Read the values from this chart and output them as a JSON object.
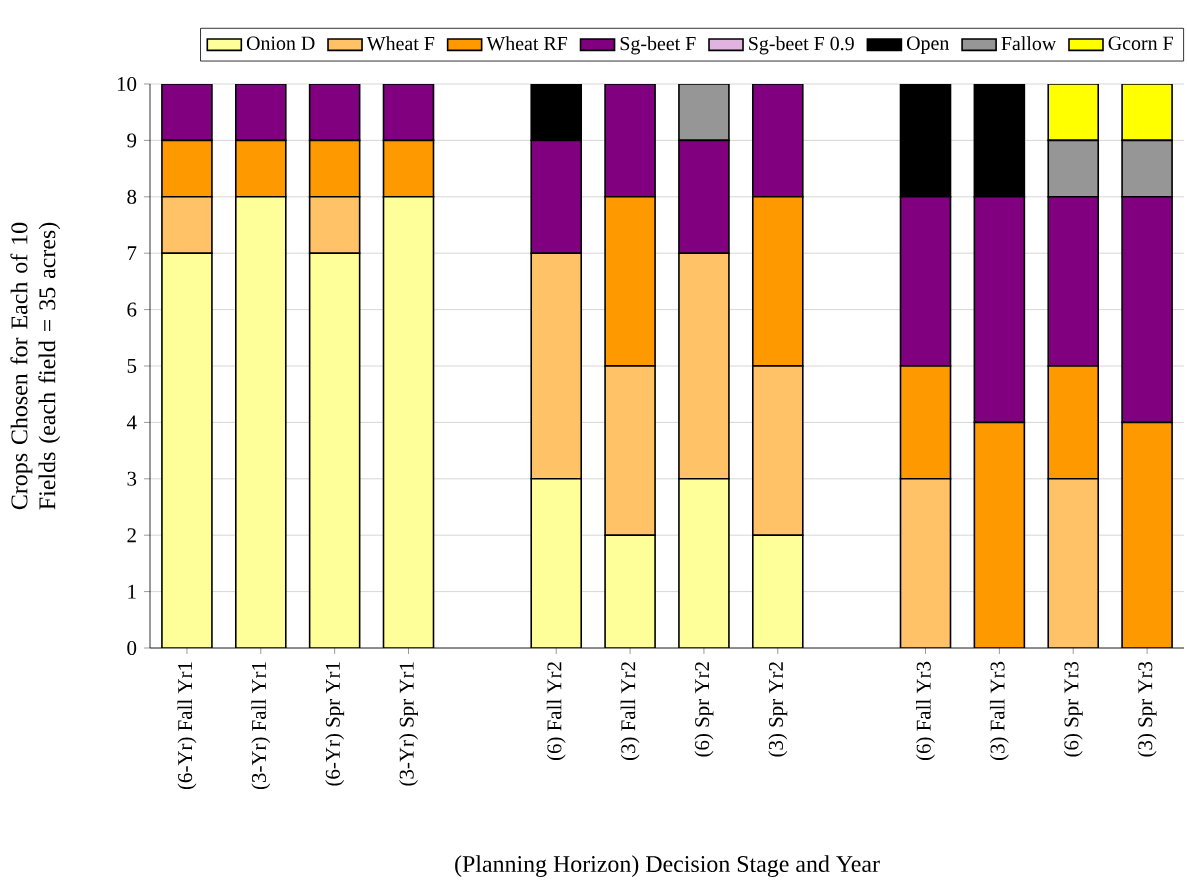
{
  "chart_data": {
    "type": "bar",
    "stacked": true,
    "categories": [
      "(6-Yr) Fall Yr1",
      "(3-Yr) Fall Yr1",
      "(6-Yr) Spr Yr1",
      "(3-Yr) Spr Yr1",
      null,
      "(6) Fall Yr2",
      "(3) Fall Yr2",
      "(6) Spr Yr2",
      "(3) Spr Yr2",
      null,
      "(6) Fall Yr3",
      "(3) Fall Yr3",
      "(6) Spr Yr3",
      "(3) Spr Yr3"
    ],
    "xlabel": "(Planning Horizon) Decision Stage and Year",
    "ylabel": "Crops Chosen for Each of 10 Fields (each field = 35 acres)",
    "ylim": [
      0,
      10
    ],
    "yticks": [
      0,
      1,
      2,
      3,
      4,
      5,
      6,
      7,
      8,
      9,
      10
    ],
    "grid": "y",
    "legend": "top",
    "series": [
      {
        "name": "Onion D",
        "color": "#ffff99",
        "values": [
          7,
          8,
          7,
          8,
          null,
          3,
          2,
          3,
          2,
          null,
          0,
          0,
          0,
          0
        ]
      },
      {
        "name": "Wheat F",
        "color": "#ffc266",
        "values": [
          1,
          0,
          1,
          0,
          null,
          4,
          3,
          4,
          3,
          null,
          3,
          0,
          3,
          0
        ]
      },
      {
        "name": "Wheat RF",
        "color": "#ff9900",
        "values": [
          1,
          1,
          1,
          1,
          null,
          0,
          3,
          0,
          3,
          null,
          2,
          4,
          2,
          4
        ]
      },
      {
        "name": "Sg-beet F",
        "color": "#800080",
        "values": [
          1,
          1,
          1,
          1,
          null,
          2,
          2,
          2,
          2,
          null,
          3,
          4,
          3,
          4
        ]
      },
      {
        "name": "Sg-beet F 0.9",
        "color": "#e0b3e0",
        "values": [
          0,
          0,
          0,
          0,
          null,
          0,
          0,
          0,
          0,
          null,
          0,
          0,
          0,
          0
        ]
      },
      {
        "name": "Open",
        "color": "#000000",
        "values": [
          0,
          0,
          0,
          0,
          null,
          1,
          0,
          0,
          0,
          null,
          2,
          2,
          0,
          0
        ]
      },
      {
        "name": "Fallow",
        "color": "#969696",
        "values": [
          0,
          0,
          0,
          0,
          null,
          0,
          0,
          1,
          0,
          null,
          0,
          0,
          1,
          1
        ]
      },
      {
        "name": "Gcorn F",
        "color": "#ffff00",
        "values": [
          0,
          0,
          0,
          0,
          null,
          0,
          0,
          0,
          0,
          null,
          0,
          0,
          1,
          1
        ]
      }
    ]
  }
}
